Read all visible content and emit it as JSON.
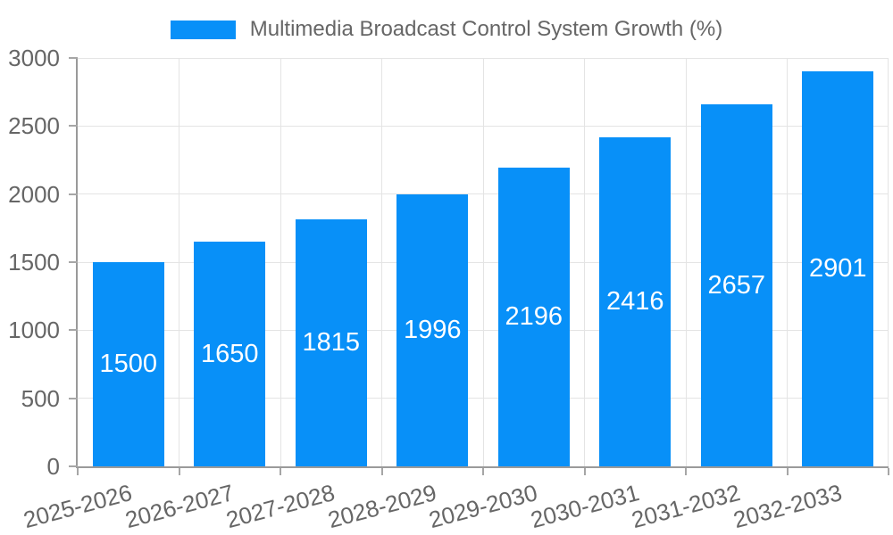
{
  "legend": {
    "label": "Multimedia Broadcast Control System Growth (%)"
  },
  "chart_data": {
    "type": "bar",
    "title": "",
    "legend_entries": [
      "Multimedia Broadcast Control System Growth (%)"
    ],
    "legend_position": "top-center",
    "categories": [
      "2025-2026",
      "2026-2027",
      "2027-2028",
      "2028-2029",
      "2029-2030",
      "2030-2031",
      "2031-2032",
      "2032-2033"
    ],
    "series": [
      {
        "name": "Multimedia Broadcast Control System Growth (%)",
        "values": [
          1500,
          1650,
          1815,
          1996,
          2196,
          2416,
          2657,
          2901
        ]
      }
    ],
    "value_labels_visible": true,
    "xlabel": "",
    "ylabel": "",
    "ylim": [
      0,
      3000
    ],
    "yticks": [
      0,
      500,
      1000,
      1500,
      2000,
      2500,
      3000
    ],
    "grid": true,
    "x_label_rotation_deg": -15,
    "colors": {
      "bar": "#0890f8",
      "value_label": "#ffffff",
      "axis_text": "#666666",
      "grid_line": "#e4e4e4",
      "axis_line": "#9a9a9a"
    }
  }
}
